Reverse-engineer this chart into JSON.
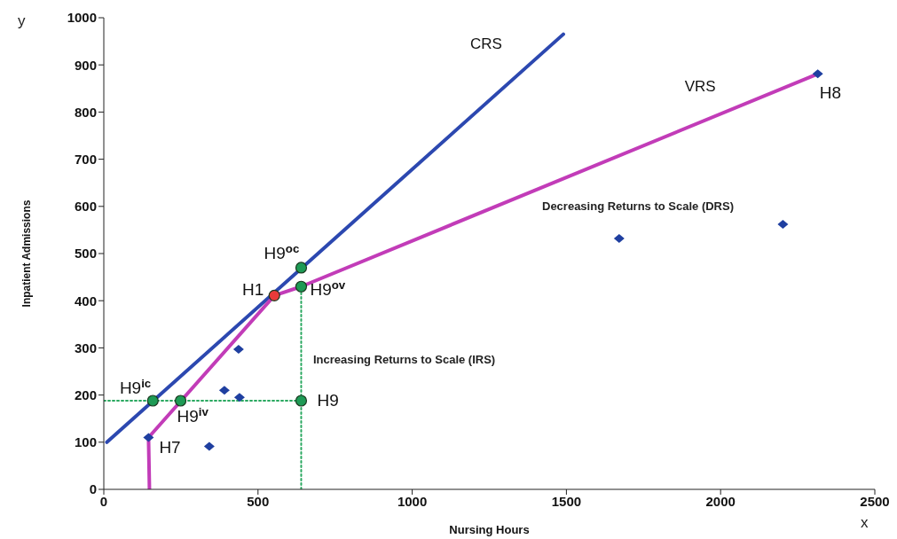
{
  "chart_data": {
    "type": "line",
    "xlabel": "Nursing Hours",
    "ylabel": "Inpatient Admissions",
    "xlim": [
      0,
      2500
    ],
    "xticks": [
      0,
      500,
      1000,
      1500,
      2000,
      2500
    ],
    "ylim": [
      0,
      1000
    ],
    "yticks": [
      0,
      100,
      200,
      300,
      400,
      500,
      600,
      700,
      800,
      900,
      1000
    ],
    "grid": false,
    "legend": false,
    "series": [
      {
        "name": "CRS",
        "color": "#2c48b0",
        "x": [
          10,
          1490
        ],
        "values": [
          100,
          965
        ],
        "marker": "none",
        "line_style": "solid"
      },
      {
        "name": "VRS",
        "color": "#c23cb8",
        "x": [
          148,
          145,
          553,
          640,
          2315
        ],
        "values": [
          0,
          110,
          411,
          430,
          881
        ],
        "marker": "none",
        "line_style": "solid"
      },
      {
        "color": "#2aa860",
        "x": [
          0,
          640
        ],
        "values": [
          188,
          188
        ],
        "marker": "none",
        "line_style": "dotted"
      },
      {
        "color": "#2aa860",
        "x": [
          640,
          640
        ],
        "values": [
          0,
          430
        ],
        "marker": "none",
        "line_style": "dotted"
      },
      {
        "type": "scatter",
        "color": "#1f3fa0",
        "x": [
          145,
          391,
          437,
          440,
          342,
          1671,
          2202,
          2315
        ],
        "values": [
          110,
          210,
          297,
          195,
          91,
          532,
          562,
          881
        ],
        "marker": "diamond"
      },
      {
        "type": "scatter",
        "color": "#1e9a55",
        "x": [
          159,
          249,
          640,
          640,
          640
        ],
        "values": [
          188,
          188,
          188,
          430,
          470
        ],
        "marker": "circle"
      },
      {
        "type": "scatter",
        "color": "#e83a3a",
        "x": [
          553
        ],
        "values": [
          411
        ],
        "marker": "circle"
      }
    ],
    "annotations": [
      {
        "text": "H8",
        "x": 2315,
        "y": 881
      },
      {
        "text": "H1",
        "x": 553,
        "y": 411
      },
      {
        "text": "H7",
        "x": 145,
        "y": 110
      },
      {
        "text": "H9",
        "x": 640,
        "y": 188
      },
      {
        "text": "H9$^{oc}$",
        "x": 640,
        "y": 470
      },
      {
        "text": "H9$^{ov}$",
        "x": 640,
        "y": 430
      },
      {
        "text": "H9$^{ic}$",
        "x": 159,
        "y": 188
      },
      {
        "text": "H9$^{iv}$",
        "x": 249,
        "y": 188
      },
      "Increasing Returns to Scale (IRS)",
      "Decreasing Returns to Scale (DRS)",
      "x",
      "y"
    ]
  }
}
